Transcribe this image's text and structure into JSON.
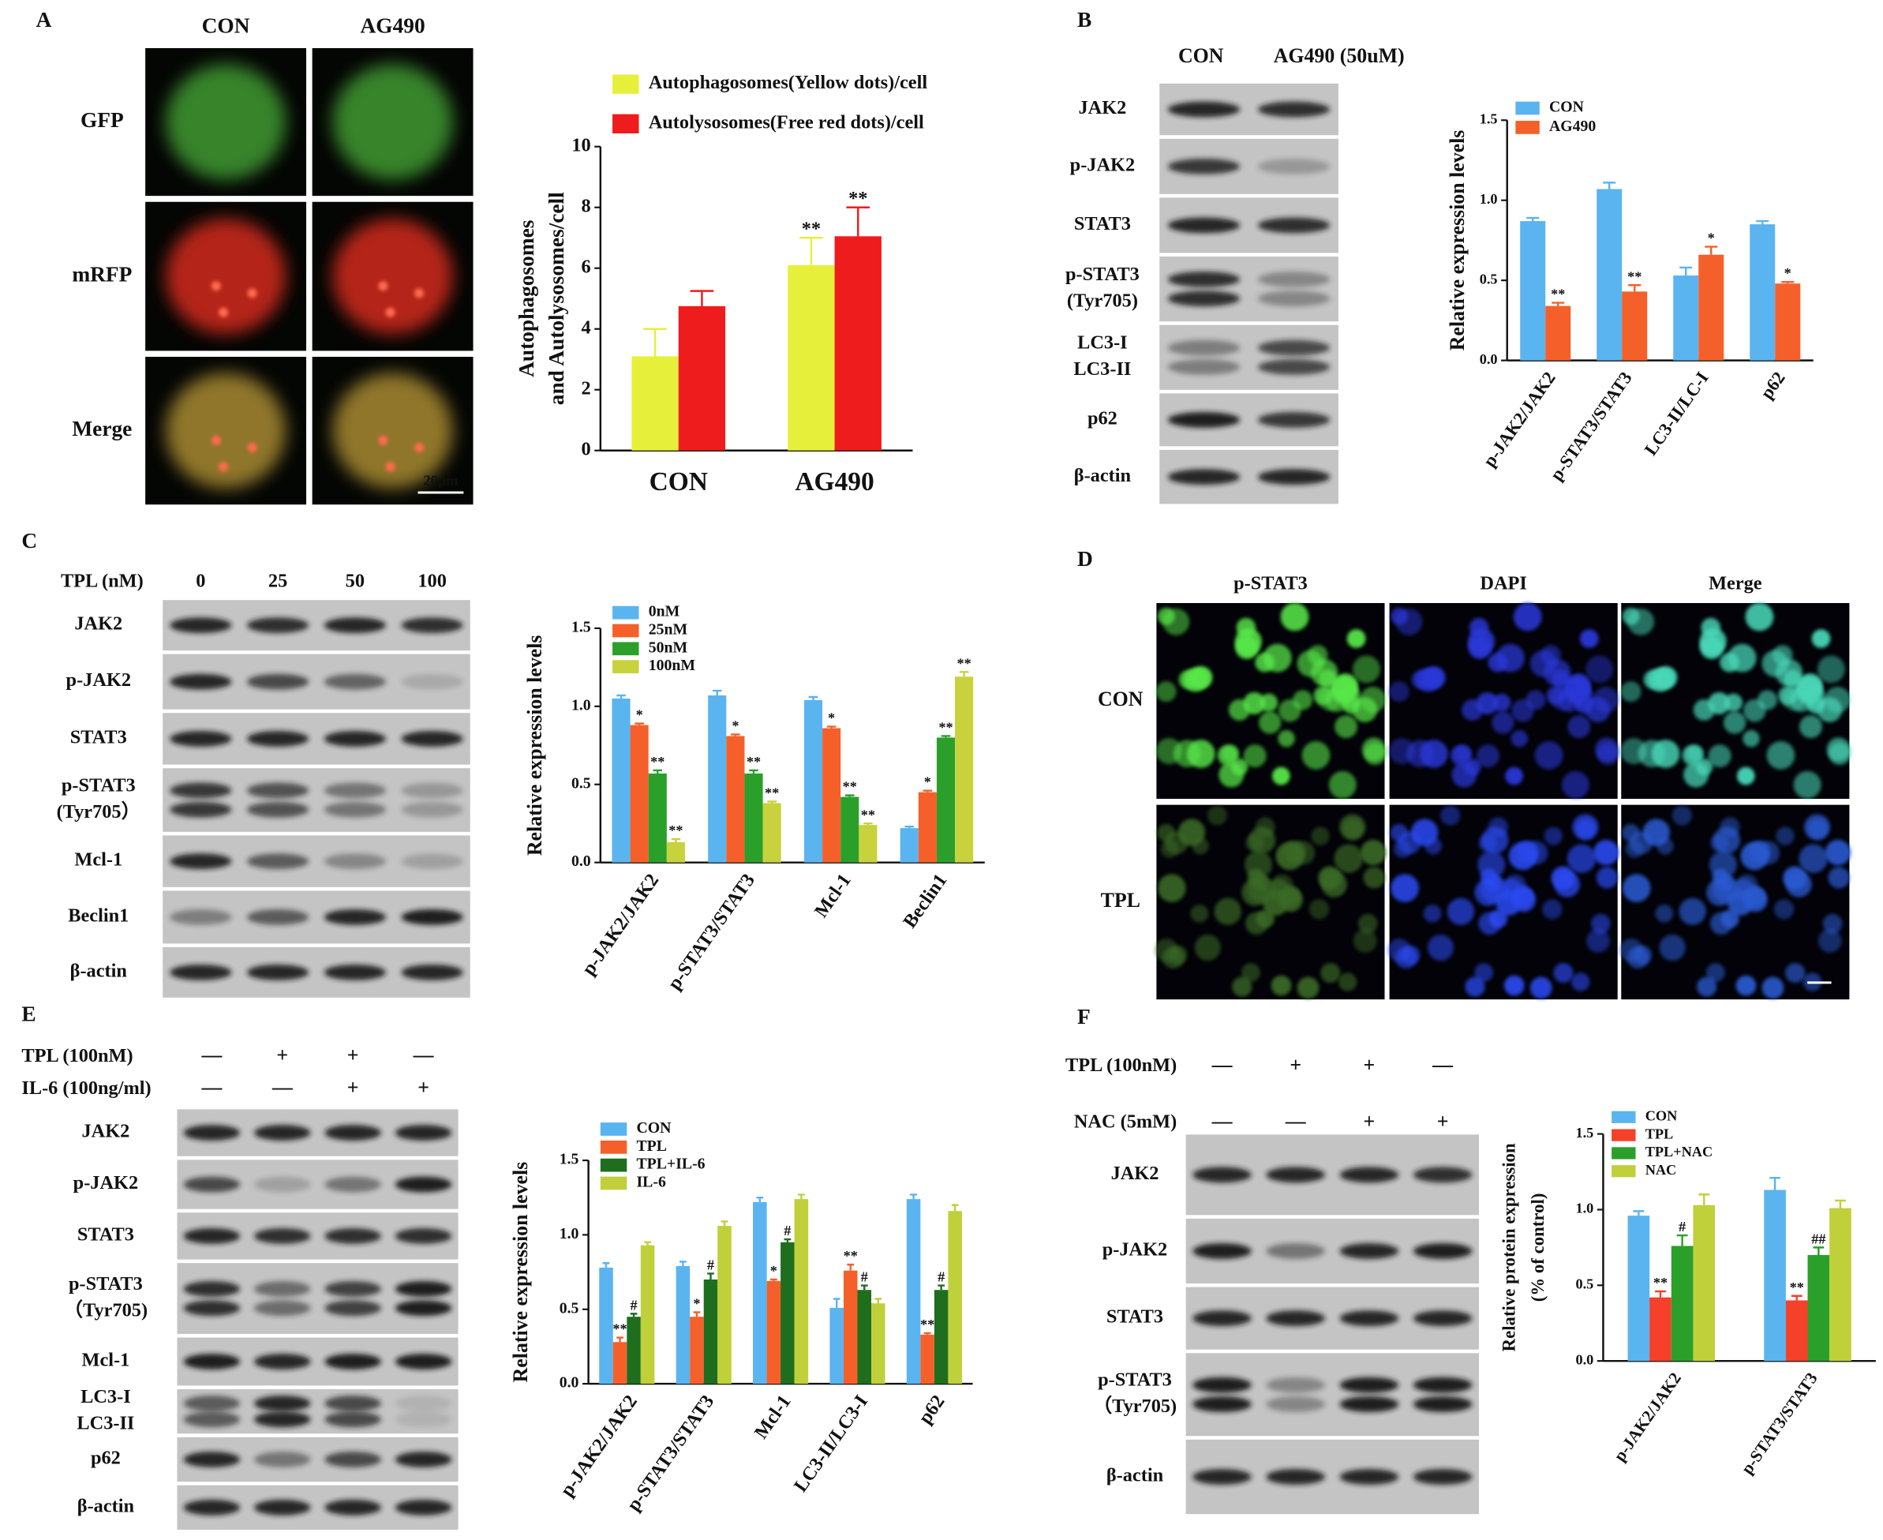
{
  "panel_labels": [
    "A",
    "B",
    "C",
    "D",
    "E",
    "F"
  ],
  "panel_a": {
    "columns": [
      "CON",
      "AG490"
    ],
    "rows": [
      "GFP",
      "mRFP",
      "Merge"
    ],
    "scale_bar": "20μm"
  },
  "panel_b_blot": {
    "columns": [
      "CON",
      "AG490 (50uM)"
    ],
    "rows": [
      [
        "JAK2"
      ],
      [
        "p-JAK2"
      ],
      [
        "STAT3"
      ],
      [
        "p-STAT3",
        "(Tyr705)"
      ],
      [
        "LC3-I",
        "LC3-II"
      ],
      [
        "p62"
      ],
      [
        "β-actin"
      ]
    ]
  },
  "panel_c_blot": {
    "treatment": "TPL (nM)",
    "doses": [
      "0",
      "25",
      "50",
      "100"
    ],
    "rows": [
      [
        "JAK2"
      ],
      [
        "p-JAK2"
      ],
      [
        "STAT3"
      ],
      [
        "p-STAT3",
        "(Tyr705）"
      ],
      [
        "Mcl-1"
      ],
      [
        "Beclin1"
      ],
      [
        "β-actin"
      ]
    ]
  },
  "panel_d": {
    "columns": [
      "p-STAT3",
      "DAPI",
      "Merge"
    ],
    "rows": [
      "CON",
      "TPL"
    ]
  },
  "panel_e_blot": {
    "treatments": [
      {
        "label": "TPL  (100nM)",
        "signs": [
          "—",
          "+",
          "+",
          "—"
        ]
      },
      {
        "label": "IL-6 (100ng/ml)",
        "signs": [
          "—",
          "—",
          "+",
          "+"
        ]
      }
    ],
    "rows": [
      [
        "JAK2"
      ],
      [
        "p-JAK2"
      ],
      [
        "STAT3"
      ],
      [
        "p-STAT3",
        "（Tyr705)"
      ],
      [
        "Mcl-1"
      ],
      [
        "LC3-I",
        "LC3-II"
      ],
      [
        "p62"
      ],
      [
        "β-actin"
      ]
    ]
  },
  "panel_f_blot": {
    "treatments": [
      {
        "label": "TPL (100nM)",
        "signs": [
          "—",
          "+",
          "+",
          "—"
        ]
      },
      {
        "label": "NAC (5mM)",
        "signs": [
          "—",
          "—",
          "+",
          "+"
        ]
      }
    ],
    "rows": [
      [
        "JAK2"
      ],
      [
        "p-JAK2"
      ],
      [
        "STAT3"
      ],
      [
        "p-STAT3",
        "（Tyr705)"
      ],
      [
        "β-actin"
      ]
    ]
  },
  "chart_data": [
    {
      "type": "bar",
      "y_label": [
        "Autophagosomes",
        "and Autolysosomes/cell"
      ],
      "categories": [
        "CON",
        "AG490"
      ],
      "series": [
        {
          "name": "Autophagosomes(Yellow dots)/cell",
          "color": "#e6f03a",
          "values": [
            3.1,
            6.1
          ],
          "errors": [
            0.9,
            0.9
          ],
          "marks": [
            null,
            "**"
          ]
        },
        {
          "name": "Autolysosomes(Free red dots)/cell",
          "color": "#ee1c1c",
          "values": [
            4.75,
            7.05
          ],
          "errors": [
            0.5,
            0.95
          ],
          "marks": [
            null,
            "**"
          ]
        }
      ],
      "ylim": [
        0,
        10
      ],
      "yticks": [
        0,
        2,
        4,
        6,
        8,
        10
      ]
    },
    {
      "type": "bar",
      "y_label": [
        "Relative expression levels"
      ],
      "categories": [
        "p-JAK2/JAK2",
        "p-STAT3/STAT3",
        "LC3-II/LC-I",
        "p62"
      ],
      "series": [
        {
          "name": "CON",
          "color": "#5ab4f0",
          "values": [
            0.87,
            1.07,
            0.53,
            0.85
          ],
          "errors": [
            0.02,
            0.04,
            0.05,
            0.02
          ],
          "marks": [
            null,
            null,
            null,
            null
          ]
        },
        {
          "name": "AG490",
          "color": "#f5602a",
          "values": [
            0.34,
            0.43,
            0.66,
            0.48
          ],
          "errors": [
            0.02,
            0.04,
            0.05,
            0.01
          ],
          "marks": [
            "**",
            "**",
            "*",
            "*"
          ]
        }
      ],
      "ylim": [
        0,
        1.5
      ],
      "yticks": [
        {
          "value": 0,
          "label": "0.0"
        },
        {
          "value": 0.5,
          "label": "0.5"
        },
        {
          "value": 1,
          "label": "1.0"
        },
        {
          "value": 1.5,
          "label": "1.5"
        }
      ]
    },
    {
      "type": "bar",
      "y_label": [
        "Relative expression levels"
      ],
      "categories": [
        "p-JAK2/JAK2",
        "p-STAT3/STAT3",
        "Mcl-1",
        "Beclin1"
      ],
      "series": [
        {
          "name": "0nM",
          "color": "#5ab4f0",
          "values": [
            1.05,
            1.07,
            1.04,
            0.22
          ],
          "errors": [
            0.02,
            0.03,
            0.02,
            0.01
          ],
          "marks": [
            null,
            null,
            null,
            null
          ]
        },
        {
          "name": "25nM",
          "color": "#f5602a",
          "values": [
            0.88,
            0.81,
            0.86,
            0.45
          ],
          "errors": [
            0.01,
            0.01,
            0.01,
            0.01
          ],
          "marks": [
            "*",
            "*",
            "*",
            "*"
          ]
        },
        {
          "name": "50nM",
          "color": "#2aa02a",
          "values": [
            0.57,
            0.57,
            0.42,
            0.8
          ],
          "errors": [
            0.02,
            0.02,
            0.01,
            0.01
          ],
          "marks": [
            "**",
            "**",
            "**",
            "**"
          ]
        },
        {
          "name": "100nM",
          "color": "#c8d23c",
          "values": [
            0.13,
            0.38,
            0.24,
            1.19
          ],
          "errors": [
            0.02,
            0.01,
            0.01,
            0.03
          ],
          "marks": [
            "**",
            "**",
            "**",
            "**"
          ]
        }
      ],
      "ylim": [
        0,
        1.5
      ],
      "yticks": [
        {
          "value": 0,
          "label": "0.0"
        },
        {
          "value": 0.5,
          "label": "0.5"
        },
        {
          "value": 1,
          "label": "1.0"
        },
        {
          "value": 1.5,
          "label": "1.5"
        }
      ]
    },
    {
      "type": "bar",
      "y_label": [
        "Relative expression levels"
      ],
      "categories": [
        "p-JAK2/JAK2",
        "p-STAT3/STAT3",
        "Mcl-1",
        "LC3-II/LC3-I",
        "p62"
      ],
      "series": [
        {
          "name": "CON",
          "color": "#5ab4f0",
          "values": [
            0.78,
            0.79,
            1.22,
            0.51,
            1.24
          ],
          "errors": [
            0.03,
            0.03,
            0.03,
            0.06,
            0.03
          ],
          "marks": [
            null,
            null,
            null,
            null,
            null
          ]
        },
        {
          "name": "TPL",
          "color": "#f5602a",
          "values": [
            0.28,
            0.45,
            0.69,
            0.76,
            0.33
          ],
          "errors": [
            0.03,
            0.03,
            0.01,
            0.04,
            0.01
          ],
          "marks": [
            "**",
            "*",
            "*",
            "**",
            "**"
          ]
        },
        {
          "name": "TPL+IL-6",
          "color": "#1e6e1e",
          "values": [
            0.45,
            0.7,
            0.95,
            0.63,
            0.63
          ],
          "errors": [
            0.02,
            0.04,
            0.02,
            0.03,
            0.03
          ],
          "marks": [
            "#",
            "#",
            "#",
            "#",
            "#"
          ]
        },
        {
          "name": "IL-6",
          "color": "#c0d03a",
          "values": [
            0.93,
            1.06,
            1.24,
            0.54,
            1.16
          ],
          "errors": [
            0.02,
            0.03,
            0.03,
            0.03,
            0.04
          ],
          "marks": [
            null,
            null,
            null,
            null,
            null
          ]
        }
      ],
      "ylim": [
        0,
        1.5
      ],
      "yticks": [
        {
          "value": 0,
          "label": "0.0"
        },
        {
          "value": 0.5,
          "label": "0.5"
        },
        {
          "value": 1,
          "label": "1.0"
        },
        {
          "value": 1.5,
          "label": "1.5"
        }
      ]
    },
    {
      "type": "bar",
      "y_label": [
        "Relative protein expression",
        "(% of control)"
      ],
      "categories": [
        "p-JAK2/JAK2",
        "p-STAT3/STAT3"
      ],
      "series": [
        {
          "name": "CON",
          "color": "#5ab4f0",
          "values": [
            0.96,
            1.13
          ],
          "errors": [
            0.03,
            0.08
          ],
          "marks": [
            null,
            null
          ]
        },
        {
          "name": "TPL",
          "color": "#f5402a",
          "values": [
            0.42,
            0.4
          ],
          "errors": [
            0.04,
            0.03
          ],
          "marks": [
            "**",
            "**"
          ]
        },
        {
          "name": "TPL+NAC",
          "color": "#2aa02a",
          "values": [
            0.76,
            0.7
          ],
          "errors": [
            0.07,
            0.05
          ],
          "marks": [
            "#",
            "##"
          ]
        },
        {
          "name": "NAC",
          "color": "#c0d03a",
          "values": [
            1.03,
            1.01
          ],
          "errors": [
            0.07,
            0.05
          ],
          "marks": [
            null,
            null
          ]
        }
      ],
      "ylim": [
        0,
        1.5
      ],
      "yticks": [
        {
          "value": 0,
          "label": "0.0"
        },
        {
          "value": 0.5,
          "label": "0.5"
        },
        {
          "value": 1,
          "label": "1.0"
        },
        {
          "value": 1.5,
          "label": "1.5"
        }
      ]
    }
  ]
}
